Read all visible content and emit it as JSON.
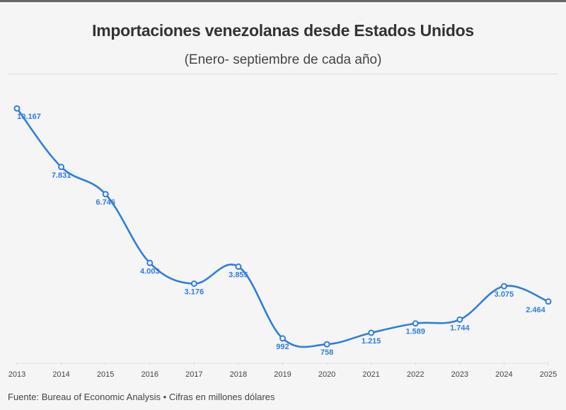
{
  "header": {
    "title": "Importaciones venezolanas desde Estados Unidos",
    "subtitle": "(Enero- septiembre de cada año)"
  },
  "footer": {
    "source": "Fuente: Bureau of Economic Analysis • Cifras en millones dólares"
  },
  "chart_data": {
    "type": "line",
    "title": "Importaciones venezolanas desde Estados Unidos",
    "subtitle": "(Enero- septiembre de cada año)",
    "x": [
      "2013",
      "2014",
      "2015",
      "2016",
      "2017",
      "2018",
      "2019",
      "2020",
      "2021",
      "2022",
      "2023",
      "2024",
      "2025"
    ],
    "values": [
      10167,
      7831,
      6746,
      4003,
      3176,
      3855,
      992,
      758,
      1215,
      1589,
      1744,
      3075,
      2464
    ],
    "labels": [
      "10.167",
      "7.831",
      "6.746",
      "4.003",
      "3.176",
      "3.855",
      "992",
      "758",
      "1.215",
      "1.589",
      "1.744",
      "3.075",
      "2.464"
    ],
    "ylim": [
      0,
      10167
    ],
    "grid": false,
    "line_color": "#2f7de1",
    "curve": "smooth"
  }
}
